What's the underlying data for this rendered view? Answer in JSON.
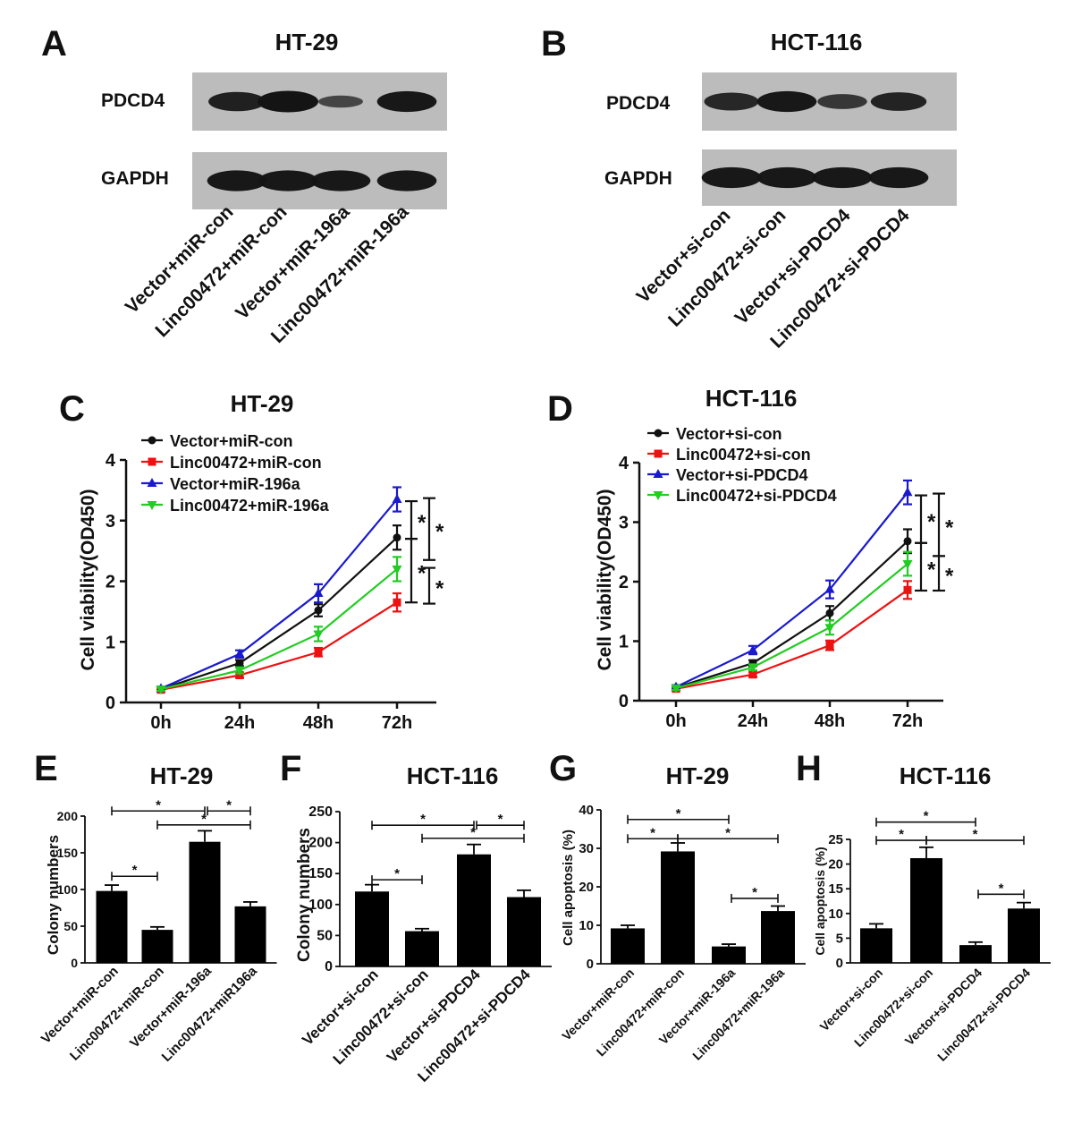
{
  "blots": [
    {
      "id": "A",
      "letter": "A",
      "title": "HT-29",
      "bands": [
        {
          "label": "PDCD4",
          "intensities": [
            0.85,
            1.0,
            0.35,
            0.95
          ]
        },
        {
          "label": "GAPDH",
          "intensities": [
            0.95,
            0.95,
            0.95,
            0.95
          ]
        }
      ],
      "lanes": [
        "Vector+miR-con",
        "Linc00472+miR-con",
        "Vector+miR-196a",
        "Linc00472+miR-196a"
      ]
    },
    {
      "id": "B",
      "letter": "B",
      "title": "HCT-116",
      "bands": [
        {
          "label": "PDCD4",
          "intensities": [
            0.75,
            0.95,
            0.55,
            0.8
          ]
        },
        {
          "label": "GAPDH",
          "intensities": [
            0.95,
            0.95,
            0.95,
            0.95
          ]
        }
      ],
      "lanes": [
        "Vector+si-con",
        "Linc00472+si-con",
        "Vector+si-PDCD4",
        "Linc00472+si-PDCD4"
      ]
    }
  ],
  "colors": {
    "black": "#111111",
    "red": "#ee1111",
    "blue": "#1a1acc",
    "green": "#22cc22",
    "blot_bg": "#bcbcbc",
    "band": "#141414"
  },
  "chart_data": [
    {
      "id": "C",
      "letter": "C",
      "type": "line",
      "title": "HT-29",
      "xlabel": "",
      "ylabel": "Cell viability(OD450)",
      "x": [
        "0h",
        "24h",
        "48h",
        "72h"
      ],
      "ylim": [
        0,
        4
      ],
      "yticks": [
        "0",
        "1",
        "2",
        "3",
        "4"
      ],
      "series": [
        {
          "name": "Vector+miR-con",
          "color": "#111111",
          "marker": "circle",
          "values": [
            0.22,
            0.65,
            1.52,
            2.72
          ],
          "errors": [
            0.03,
            0.05,
            0.1,
            0.2
          ]
        },
        {
          "name": "Linc00472+miR-con",
          "color": "#ee1111",
          "marker": "square",
          "values": [
            0.21,
            0.45,
            0.83,
            1.65
          ],
          "errors": [
            0.03,
            0.04,
            0.07,
            0.15
          ]
        },
        {
          "name": "Vector+miR-196a",
          "color": "#1a1acc",
          "marker": "triangle-up",
          "values": [
            0.23,
            0.8,
            1.8,
            3.35
          ],
          "errors": [
            0.03,
            0.06,
            0.15,
            0.2
          ]
        },
        {
          "name": "Linc00472+miR-196a",
          "color": "#22cc22",
          "marker": "triangle-down",
          "values": [
            0.22,
            0.53,
            1.13,
            2.2
          ],
          "errors": [
            0.03,
            0.05,
            0.12,
            0.2
          ]
        }
      ],
      "significance": [
        {
          "from": 3.32,
          "to": 2.7,
          "label": "*"
        },
        {
          "from": 2.7,
          "to": 1.65,
          "label": "*"
        },
        {
          "from": 3.37,
          "to": 2.35,
          "label": "*"
        },
        {
          "from": 2.22,
          "to": 1.63,
          "label": "*"
        }
      ]
    },
    {
      "id": "D",
      "letter": "D",
      "type": "line",
      "title": "HCT-116",
      "xlabel": "",
      "ylabel": "Cell viability(OD450)",
      "x": [
        "0h",
        "24h",
        "48h",
        "72h"
      ],
      "ylim": [
        0,
        4
      ],
      "yticks": [
        "0",
        "1",
        "2",
        "3",
        "4"
      ],
      "series": [
        {
          "name": "Vector+si-con",
          "color": "#111111",
          "marker": "circle",
          "values": [
            0.22,
            0.63,
            1.47,
            2.68
          ],
          "errors": [
            0.03,
            0.05,
            0.12,
            0.2
          ]
        },
        {
          "name": "Linc00472+si-con",
          "color": "#ee1111",
          "marker": "square",
          "values": [
            0.2,
            0.44,
            0.93,
            1.86
          ],
          "errors": [
            0.03,
            0.04,
            0.08,
            0.15
          ]
        },
        {
          "name": "Vector+si-PDCD4",
          "color": "#1a1acc",
          "marker": "triangle-up",
          "values": [
            0.23,
            0.85,
            1.87,
            3.5
          ],
          "errors": [
            0.03,
            0.07,
            0.15,
            0.2
          ]
        },
        {
          "name": "Linc00472+si-PDCD4",
          "color": "#22cc22",
          "marker": "triangle-down",
          "values": [
            0.21,
            0.56,
            1.23,
            2.3
          ],
          "errors": [
            0.03,
            0.05,
            0.12,
            0.2
          ]
        }
      ],
      "significance": [
        {
          "from": 3.45,
          "to": 2.65,
          "label": "*"
        },
        {
          "from": 2.65,
          "to": 1.85,
          "label": "*"
        },
        {
          "from": 3.48,
          "to": 2.43,
          "label": "*"
        },
        {
          "from": 2.43,
          "to": 1.85,
          "label": "*"
        }
      ]
    },
    {
      "id": "E",
      "letter": "E",
      "type": "bar",
      "title": "HT-29",
      "xlabel": "",
      "ylabel": "Colony numbers",
      "categories": [
        "Vector+miR-con",
        "Linc00472+miR-con",
        "Vector+miR-196a",
        "Linc00472+miR196a"
      ],
      "values": [
        98,
        45,
        165,
        77
      ],
      "errors": [
        8,
        4,
        15,
        6
      ],
      "ylim": [
        0,
        200
      ],
      "yticks": [
        "0",
        "50",
        "100",
        "150",
        "200"
      ],
      "brackets": [
        {
          "a": 0,
          "b": 2,
          "y": 207,
          "label": "*"
        },
        {
          "a": 2,
          "b": 3,
          "y": 207,
          "label": "*"
        },
        {
          "a": 1,
          "b": 3,
          "y": 188,
          "label": "*"
        },
        {
          "a": 0,
          "b": 1,
          "y": 118,
          "label": "*"
        }
      ]
    },
    {
      "id": "F",
      "letter": "F",
      "type": "bar",
      "title": "HCT-116",
      "xlabel": "",
      "ylabel": "Colony numbers",
      "categories": [
        "Vector+si-con",
        "Linc00472+si-con",
        "Vector+si-PDCD4",
        "Linc00472+si-PDCD4"
      ],
      "values": [
        121,
        57,
        181,
        112
      ],
      "errors": [
        11,
        4,
        16,
        11
      ],
      "ylim": [
        0,
        250
      ],
      "yticks": [
        "0",
        "50",
        "100",
        "150",
        "200",
        "250"
      ],
      "brackets": [
        {
          "a": 0,
          "b": 2,
          "y": 228,
          "label": "*"
        },
        {
          "a": 2,
          "b": 3,
          "y": 228,
          "label": "*"
        },
        {
          "a": 1,
          "b": 3,
          "y": 207,
          "label": "*"
        },
        {
          "a": 0,
          "b": 1,
          "y": 140,
          "label": "*"
        }
      ]
    },
    {
      "id": "G",
      "letter": "G",
      "type": "bar",
      "title": "HT-29",
      "xlabel": "",
      "ylabel": "Cell apoptosis (%)",
      "categories": [
        "Vector+miR-con",
        "Linc00472+miR-con",
        "Vector+miR-196a",
        "Linc00472+miR-196a"
      ],
      "values": [
        9.2,
        29.2,
        4.5,
        13.7
      ],
      "errors": [
        0.8,
        2.2,
        0.6,
        1.3
      ],
      "ylim": [
        0,
        40
      ],
      "yticks": [
        "0",
        "10",
        "20",
        "30",
        "40"
      ],
      "brackets": [
        {
          "a": 0,
          "b": 2,
          "y": 37.5,
          "label": "*"
        },
        {
          "a": 0,
          "b": 1,
          "y": 32.5,
          "label": "*"
        },
        {
          "a": 1,
          "b": 3,
          "y": 32.5,
          "label": "*"
        },
        {
          "a": 2,
          "b": 3,
          "y": 17,
          "label": "*"
        }
      ]
    },
    {
      "id": "H",
      "letter": "H",
      "type": "bar",
      "title": "HCT-116",
      "xlabel": "",
      "ylabel": "Cell apoptosis (%)",
      "categories": [
        "Vector+si-con",
        "Linc00472+si-con",
        "Vector+si-PDCD4",
        "Linc00472+si-PDCD4"
      ],
      "values": [
        7,
        21.2,
        3.6,
        11
      ],
      "errors": [
        0.9,
        2.2,
        0.6,
        1.2
      ],
      "ylim": [
        0,
        25
      ],
      "yticks": [
        "0",
        "5",
        "10",
        "15",
        "20",
        "25"
      ],
      "brackets": [
        {
          "a": 0,
          "b": 2,
          "y": 28.5,
          "label": "*"
        },
        {
          "a": 0,
          "b": 1,
          "y": 24.8,
          "label": "*"
        },
        {
          "a": 1,
          "b": 3,
          "y": 24.8,
          "label": "*"
        },
        {
          "a": 2,
          "b": 3,
          "y": 13.9,
          "label": "*"
        }
      ]
    }
  ]
}
